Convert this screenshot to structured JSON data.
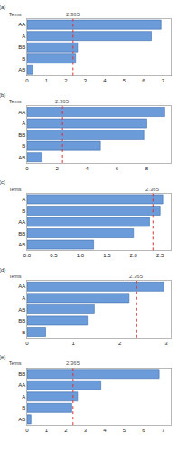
{
  "chart_data": [
    {
      "type": "bar",
      "label": "(a)",
      "ylabel": "Terms",
      "orientation": "horizontal",
      "color": "#6b9bd8",
      "categories": [
        "AA",
        "A",
        "BB",
        "B",
        "AB"
      ],
      "values": [
        6.9,
        6.4,
        2.6,
        2.5,
        0.3
      ],
      "xlim": [
        0,
        7.4
      ],
      "xticks": [
        0,
        1,
        2,
        3,
        4,
        5,
        6,
        7
      ],
      "reference_line": {
        "value": 2.365,
        "label": "2.365"
      }
    },
    {
      "type": "bar",
      "label": "(b)",
      "ylabel": "Terms",
      "orientation": "horizontal",
      "color": "#6b9bd8",
      "categories": [
        "AA",
        "A",
        "BB",
        "B",
        "AB"
      ],
      "values": [
        9.2,
        8.0,
        7.8,
        4.9,
        1.0
      ],
      "xlim": [
        0,
        9.6
      ],
      "xticks": [
        0,
        2,
        4,
        6,
        8
      ],
      "reference_line": {
        "value": 2.365,
        "label": "2.365"
      }
    },
    {
      "type": "bar",
      "label": "(c)",
      "ylabel": "Terms",
      "orientation": "horizontal",
      "color": "#6b9bd8",
      "categories": [
        "A",
        "B",
        "AA",
        "BB",
        "AB"
      ],
      "values": [
        2.55,
        2.5,
        2.3,
        2.0,
        1.25
      ],
      "xlim": [
        0,
        2.7
      ],
      "xticks": [
        {
          "value": 0,
          "label": "0.0"
        },
        {
          "value": 0.5,
          "label": "0.5"
        },
        {
          "value": 1,
          "label": "1.0"
        },
        {
          "value": 1.5,
          "label": "1.5"
        },
        {
          "value": 2,
          "label": "2.0"
        },
        {
          "value": 2.5,
          "label": "2.5"
        }
      ],
      "reference_line": {
        "value": 2.365,
        "label": "2.365"
      }
    },
    {
      "type": "bar",
      "label": "(d)",
      "ylabel": "Terms",
      "orientation": "horizontal",
      "color": "#6b9bd8",
      "categories": [
        "AA",
        "A",
        "AB",
        "BB",
        "B"
      ],
      "values": [
        2.95,
        2.2,
        1.45,
        1.3,
        0.4
      ],
      "xlim": [
        0,
        3.1
      ],
      "xticks": [
        0,
        1,
        2,
        3
      ],
      "reference_line": {
        "value": 2.365,
        "label": "2.365"
      }
    },
    {
      "type": "bar",
      "label": "(e)",
      "ylabel": "Terms",
      "orientation": "horizontal",
      "color": "#6b9bd8",
      "categories": [
        "BB",
        "AA",
        "A",
        "B",
        "AB"
      ],
      "values": [
        6.8,
        3.8,
        2.6,
        2.3,
        0.2
      ],
      "xlim": [
        0,
        7.4
      ],
      "xticks": [
        0,
        1,
        2,
        3,
        4,
        5,
        6,
        7
      ],
      "reference_line": {
        "value": 2.365,
        "label": "2.365"
      }
    }
  ]
}
